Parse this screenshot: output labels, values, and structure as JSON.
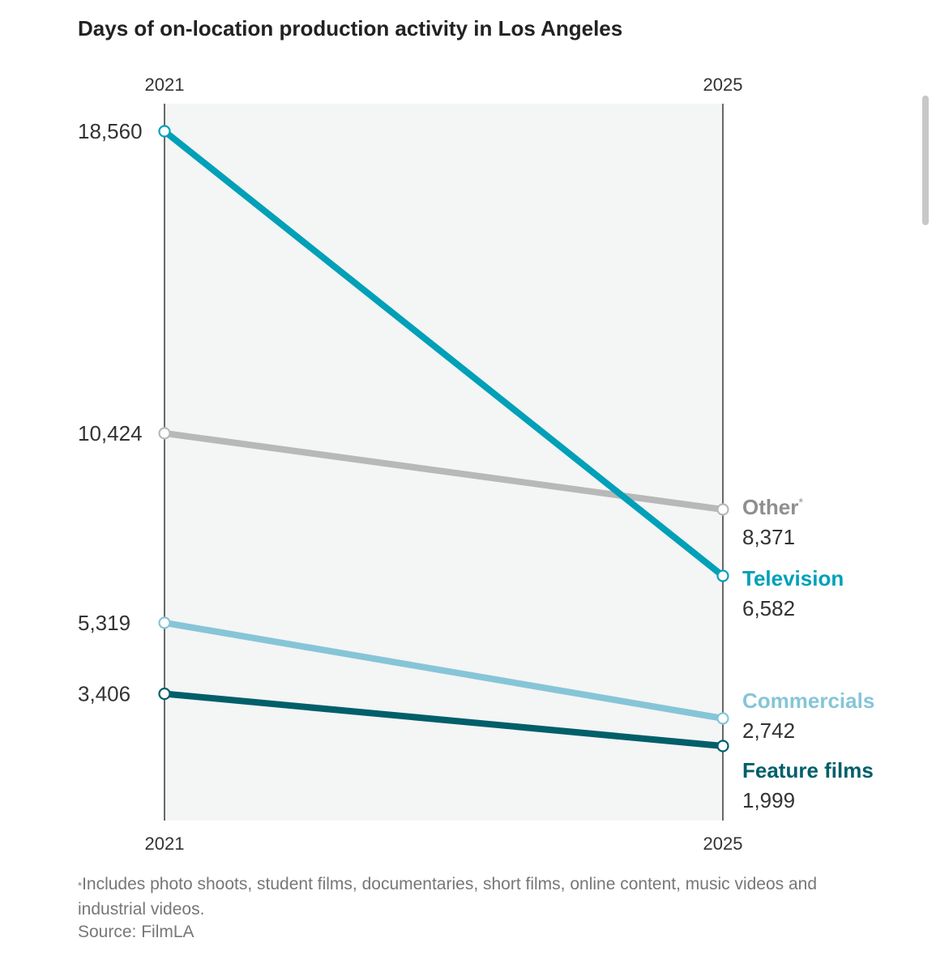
{
  "title": "Days of on-location production activity in Los Angeles",
  "footnote": {
    "marker": "*",
    "text": "Includes photo shoots, student films, documentaries, short films, online content, music videos and industrial videos."
  },
  "source": "Source: FilmLA",
  "chart_data": {
    "type": "line",
    "title": "Days of on-location production activity in Los Angeles",
    "x": [
      "2021",
      "2025"
    ],
    "xlabel": "",
    "ylabel": "",
    "grid": false,
    "legend": "direct labels at right",
    "series": [
      {
        "name": "Television",
        "values": [
          18560,
          6582
        ],
        "labels": [
          "18,560",
          "6,582"
        ],
        "color": "#00a0b8"
      },
      {
        "name": "Other",
        "marker": "*",
        "values": [
          10424,
          8371
        ],
        "labels": [
          "10,424",
          "8,371"
        ],
        "color": "#b8b8b8"
      },
      {
        "name": "Commercials",
        "values": [
          5319,
          2742
        ],
        "labels": [
          "5,319",
          "2,742"
        ],
        "color": "#86c5d8"
      },
      {
        "name": "Feature films",
        "values": [
          3406,
          1999
        ],
        "labels": [
          "3,406",
          "1,999"
        ],
        "color": "#005f69"
      }
    ]
  }
}
